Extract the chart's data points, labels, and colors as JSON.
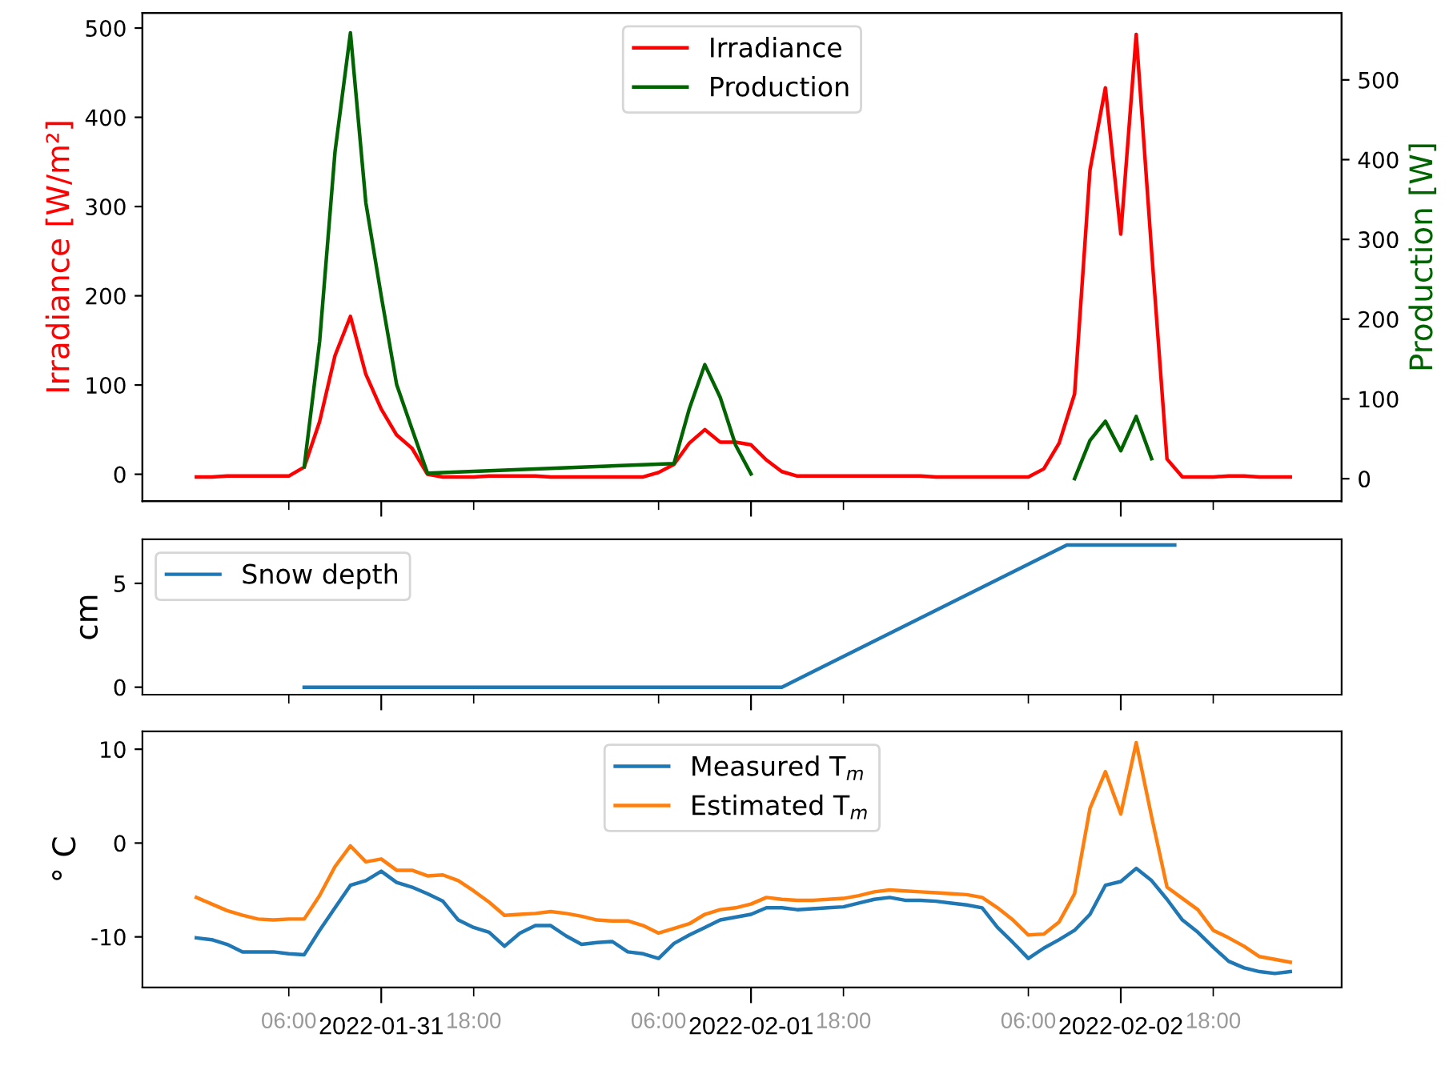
{
  "chart_data": [
    {
      "type": "line",
      "ylabel": "Irradiance [W/m²]",
      "y2label": "Production [W]",
      "legend": "top",
      "tick_labels": "y",
      "xlim": [
        "2022-01-30T20:30",
        "2022-02-03T02:20"
      ],
      "xticks": [
        {
          "value": "2022-01-31T06:00",
          "label": null
        },
        {
          "value": "2022-01-31T12:00",
          "label": null
        },
        {
          "value": "2022-01-31T18:00",
          "label": null
        },
        {
          "value": "2022-02-01T06:00",
          "label": null
        },
        {
          "value": "2022-02-01T12:00",
          "label": null
        },
        {
          "value": "2022-02-01T18:00",
          "label": null
        },
        {
          "value": "2022-02-02T06:00",
          "label": null
        },
        {
          "value": "2022-02-02T12:00",
          "label": null
        },
        {
          "value": "2022-02-02T18:00",
          "label": null
        }
      ],
      "ylim": [
        -30,
        517
      ],
      "yticks": [
        0,
        100,
        200,
        300,
        400,
        500
      ],
      "y2lim": [
        -28,
        584
      ],
      "y2ticks": [
        0,
        100,
        200,
        300,
        400,
        500
      ],
      "x": [
        "2022-01-31T00:00",
        "2022-01-31T01:00",
        "2022-01-31T02:00",
        "2022-01-31T03:00",
        "2022-01-31T04:00",
        "2022-01-31T05:00",
        "2022-01-31T06:00",
        "2022-01-31T07:00",
        "2022-01-31T08:00",
        "2022-01-31T09:00",
        "2022-01-31T10:00",
        "2022-01-31T11:00",
        "2022-01-31T12:00",
        "2022-01-31T13:00",
        "2022-01-31T14:00",
        "2022-01-31T15:00",
        "2022-01-31T16:00",
        "2022-01-31T17:00",
        "2022-01-31T18:00",
        "2022-01-31T19:00",
        "2022-01-31T20:00",
        "2022-01-31T21:00",
        "2022-01-31T22:00",
        "2022-01-31T23:00",
        "2022-02-01T00:00",
        "2022-02-01T01:00",
        "2022-02-01T02:00",
        "2022-02-01T03:00",
        "2022-02-01T04:00",
        "2022-02-01T05:00",
        "2022-02-01T06:00",
        "2022-02-01T07:00",
        "2022-02-01T08:00",
        "2022-02-01T09:00",
        "2022-02-01T10:00",
        "2022-02-01T11:00",
        "2022-02-01T12:00",
        "2022-02-01T13:00",
        "2022-02-01T14:00",
        "2022-02-01T15:00",
        "2022-02-01T16:00",
        "2022-02-01T17:00",
        "2022-02-01T18:00",
        "2022-02-01T19:00",
        "2022-02-01T20:00",
        "2022-02-01T21:00",
        "2022-02-01T22:00",
        "2022-02-01T23:00",
        "2022-02-02T00:00",
        "2022-02-02T01:00",
        "2022-02-02T02:00",
        "2022-02-02T03:00",
        "2022-02-02T04:00",
        "2022-02-02T05:00",
        "2022-02-02T06:00",
        "2022-02-02T07:00",
        "2022-02-02T08:00",
        "2022-02-02T09:00",
        "2022-02-02T10:00",
        "2022-02-02T11:00",
        "2022-02-02T12:00",
        "2022-02-02T13:00",
        "2022-02-02T14:00",
        "2022-02-02T15:00",
        "2022-02-02T16:00",
        "2022-02-02T17:00",
        "2022-02-02T18:00",
        "2022-02-02T19:00",
        "2022-02-02T20:00",
        "2022-02-02T21:00",
        "2022-02-02T22:00",
        "2022-02-02T23:00"
      ],
      "series": [
        {
          "name": "Irradiance",
          "color": "#ff0000",
          "values": [
            -3,
            -3,
            -2,
            -2,
            -2,
            -2,
            -2,
            8,
            59,
            133,
            177,
            112,
            73,
            44,
            29,
            0,
            -3,
            -3,
            -3,
            -2,
            -2,
            -2,
            -2,
            -3,
            -3,
            -3,
            -3,
            -3,
            -3,
            -3,
            2,
            11,
            35,
            50,
            36,
            36,
            33,
            16,
            3,
            -2,
            -2,
            -2,
            -2,
            -2,
            -2,
            -2,
            -2,
            -2,
            -3,
            -3,
            -3,
            -3,
            -3,
            -3,
            -3,
            6,
            35,
            90,
            341,
            433,
            269,
            493,
            250,
            17,
            -3,
            -3,
            -3,
            -2,
            -2,
            -3,
            -3,
            -3
          ]
        },
        {
          "name": "Production",
          "color": "#006400",
          "axis": "y2",
          "x": [
            "2022-01-31T07:00",
            "2022-01-31T08:00",
            "2022-01-31T09:00",
            "2022-01-31T10:00",
            "2022-01-31T11:00",
            "2022-01-31T12:00",
            "2022-01-31T13:00",
            "2022-01-31T14:00",
            "2022-01-31T15:00",
            "2022-02-01T07:00",
            "2022-02-01T08:00",
            "2022-02-01T09:00",
            "2022-02-01T10:00",
            "2022-02-01T11:00",
            "2022-02-01T12:00",
            "2022-02-01T18:00",
            "2022-02-02T09:00",
            "2022-02-02T10:00",
            "2022-02-02T11:00",
            "2022-02-02T12:00",
            "2022-02-02T13:00",
            "2022-02-02T14:00"
          ],
          "values": [
            15,
            172,
            410,
            559,
            346,
            229,
            118,
            62,
            7,
            19,
            88,
            143,
            102,
            42,
            6,
            null,
            0,
            48,
            72,
            35,
            78,
            25
          ]
        }
      ]
    },
    {
      "type": "line",
      "ylabel": "cm",
      "legend": "top left",
      "tick_labels": "y",
      "xlim": [
        "2022-01-30T20:30",
        "2022-02-03T02:20"
      ],
      "xticks": [
        {
          "value": "2022-01-31T06:00",
          "label": null
        },
        {
          "value": "2022-01-31T12:00",
          "label": null
        },
        {
          "value": "2022-01-31T18:00",
          "label": null
        },
        {
          "value": "2022-02-01T06:00",
          "label": null
        },
        {
          "value": "2022-02-01T12:00",
          "label": null
        },
        {
          "value": "2022-02-01T18:00",
          "label": null
        },
        {
          "value": "2022-02-02T06:00",
          "label": null
        },
        {
          "value": "2022-02-02T12:00",
          "label": null
        },
        {
          "value": "2022-02-02T18:00",
          "label": null
        }
      ],
      "ylim": [
        -0.36,
        7.12
      ],
      "yticks": [
        0,
        5
      ],
      "series": [
        {
          "name": "Snow depth",
          "color": "#1f77b4",
          "x": [
            "2022-01-31T07:00",
            "2022-02-01T14:00",
            "2022-02-02T08:30",
            "2022-02-02T15:30"
          ],
          "values": [
            0,
            0,
            6.85,
            6.85
          ]
        }
      ]
    },
    {
      "type": "line",
      "ylabel": "° C",
      "legend": "top",
      "xlim": [
        "2022-01-30T20:30",
        "2022-02-03T02:20"
      ],
      "xticks": [
        {
          "value": "2022-01-31T06:00",
          "label": "06:00"
        },
        {
          "value": "2022-01-31T12:00",
          "label": "2022-01-31"
        },
        {
          "value": "2022-01-31T18:00",
          "label": "18:00"
        },
        {
          "value": "2022-02-01T06:00",
          "label": "06:00"
        },
        {
          "value": "2022-02-01T12:00",
          "label": "2022-02-01"
        },
        {
          "value": "2022-02-01T18:00",
          "label": "18:00"
        },
        {
          "value": "2022-02-02T06:00",
          "label": "06:00"
        },
        {
          "value": "2022-02-02T12:00",
          "label": "2022-02-02"
        },
        {
          "value": "2022-02-02T18:00",
          "label": "18:00"
        }
      ],
      "ylim": [
        -15.4,
        11.9
      ],
      "yticks": [
        -10,
        0,
        10
      ],
      "x": [
        "2022-01-31T00:00",
        "2022-01-31T01:00",
        "2022-01-31T02:00",
        "2022-01-31T03:00",
        "2022-01-31T04:00",
        "2022-01-31T05:00",
        "2022-01-31T06:00",
        "2022-01-31T07:00",
        "2022-01-31T08:00",
        "2022-01-31T09:00",
        "2022-01-31T10:00",
        "2022-01-31T11:00",
        "2022-01-31T12:00",
        "2022-01-31T13:00",
        "2022-01-31T14:00",
        "2022-01-31T15:00",
        "2022-01-31T16:00",
        "2022-01-31T17:00",
        "2022-01-31T18:00",
        "2022-01-31T19:00",
        "2022-01-31T20:00",
        "2022-01-31T21:00",
        "2022-01-31T22:00",
        "2022-01-31T23:00",
        "2022-02-01T00:00",
        "2022-02-01T01:00",
        "2022-02-01T02:00",
        "2022-02-01T03:00",
        "2022-02-01T04:00",
        "2022-02-01T05:00",
        "2022-02-01T06:00",
        "2022-02-01T07:00",
        "2022-02-01T08:00",
        "2022-02-01T09:00",
        "2022-02-01T10:00",
        "2022-02-01T11:00",
        "2022-02-01T12:00",
        "2022-02-01T13:00",
        "2022-02-01T14:00",
        "2022-02-01T15:00",
        "2022-02-01T16:00",
        "2022-02-01T17:00",
        "2022-02-01T18:00",
        "2022-02-01T19:00",
        "2022-02-01T20:00",
        "2022-02-01T21:00",
        "2022-02-01T22:00",
        "2022-02-01T23:00",
        "2022-02-02T00:00",
        "2022-02-02T01:00",
        "2022-02-02T02:00",
        "2022-02-02T03:00",
        "2022-02-02T04:00",
        "2022-02-02T05:00",
        "2022-02-02T06:00",
        "2022-02-02T07:00",
        "2022-02-02T08:00",
        "2022-02-02T09:00",
        "2022-02-02T10:00",
        "2022-02-02T11:00",
        "2022-02-02T12:00",
        "2022-02-02T13:00",
        "2022-02-02T14:00",
        "2022-02-02T15:00",
        "2022-02-02T16:00",
        "2022-02-02T17:00",
        "2022-02-02T18:00",
        "2022-02-02T19:00",
        "2022-02-02T20:00",
        "2022-02-02T21:00",
        "2022-02-02T22:00",
        "2022-02-02T23:00"
      ],
      "series": [
        {
          "name": "Measured T$_{m}$",
          "color": "#1f77b4",
          "values": [
            -10.1,
            -10.3,
            -10.8,
            -11.6,
            -11.6,
            -11.6,
            -11.8,
            -11.9,
            -9.3,
            -6.9,
            -4.5,
            -4.0,
            -3.0,
            -4.2,
            -4.7,
            -5.4,
            -6.2,
            -8.2,
            -9.0,
            -9.5,
            -11.0,
            -9.6,
            -8.8,
            -8.8,
            -9.9,
            -10.8,
            -10.6,
            -10.5,
            -11.6,
            -11.8,
            -12.3,
            -10.7,
            -9.8,
            -9.0,
            -8.2,
            -7.9,
            -7.6,
            -6.9,
            -6.9,
            -7.1,
            -7.0,
            -6.9,
            -6.8,
            -6.4,
            -6.0,
            -5.8,
            -6.1,
            -6.1,
            -6.2,
            -6.4,
            -6.6,
            -6.9,
            -9.0,
            -10.6,
            -12.3,
            -11.2,
            -10.3,
            -9.3,
            -7.6,
            -4.5,
            -4.1,
            -2.7,
            -4.0,
            -6.0,
            -8.2,
            -9.5,
            -11.1,
            -12.6,
            -13.3,
            -13.7,
            -13.9,
            -13.7
          ]
        },
        {
          "name": "Estimated T$_{m}$",
          "color": "#ff7f0e",
          "values": [
            -5.8,
            -6.5,
            -7.2,
            -7.7,
            -8.1,
            -8.2,
            -8.1,
            -8.1,
            -5.6,
            -2.5,
            -0.3,
            -2.0,
            -1.7,
            -2.9,
            -2.9,
            -3.5,
            -3.4,
            -4.0,
            -5.1,
            -6.3,
            -7.7,
            -7.6,
            -7.5,
            -7.3,
            -7.5,
            -7.8,
            -8.2,
            -8.3,
            -8.3,
            -8.8,
            -9.6,
            -9.1,
            -8.6,
            -7.6,
            -7.1,
            -6.9,
            -6.5,
            -5.8,
            -6.0,
            -6.1,
            -6.1,
            -6.0,
            -5.9,
            -5.6,
            -5.2,
            -5.0,
            -5.1,
            -5.2,
            -5.3,
            -5.4,
            -5.5,
            -5.8,
            -6.9,
            -8.2,
            -9.8,
            -9.7,
            -8.4,
            -5.4,
            3.7,
            7.6,
            3.1,
            10.7,
            2.8,
            -4.7,
            -5.9,
            -7.1,
            -9.3,
            -10.1,
            -11.0,
            -12.1,
            -12.4,
            -12.7
          ]
        }
      ]
    }
  ]
}
